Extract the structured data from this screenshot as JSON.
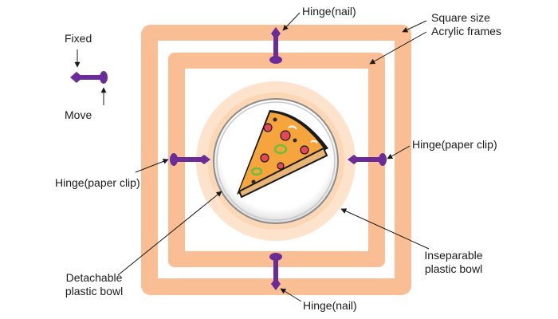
{
  "colors": {
    "frame": "#F9BE94",
    "bowl_outer": "#FDE3CC",
    "bowl_ring": "#FCD7B6",
    "hinge": "#6A2C96",
    "arrow": "#1a1a1a",
    "background": "#ffffff"
  },
  "legend": {
    "fixed_label": "Fixed",
    "move_label": "Move"
  },
  "labels": {
    "hinge_nail_top": "Hinge(nail)",
    "hinge_nail_bottom": "Hinge(nail)",
    "square_frames_line1": "Square size",
    "square_frames_line2": "Acrylic frames",
    "hinge_clip_left_line1": "Hinge(paper clip)",
    "hinge_clip_right_line1": "Hinge(paper clip)",
    "detachable_line1": "Detachable",
    "detachable_line2": "plastic bowl",
    "inseparable_line1": "Inseparable",
    "inseparable_line2": "plastic bowl"
  },
  "icons": {
    "center_image": "pizza-slice-icon"
  }
}
